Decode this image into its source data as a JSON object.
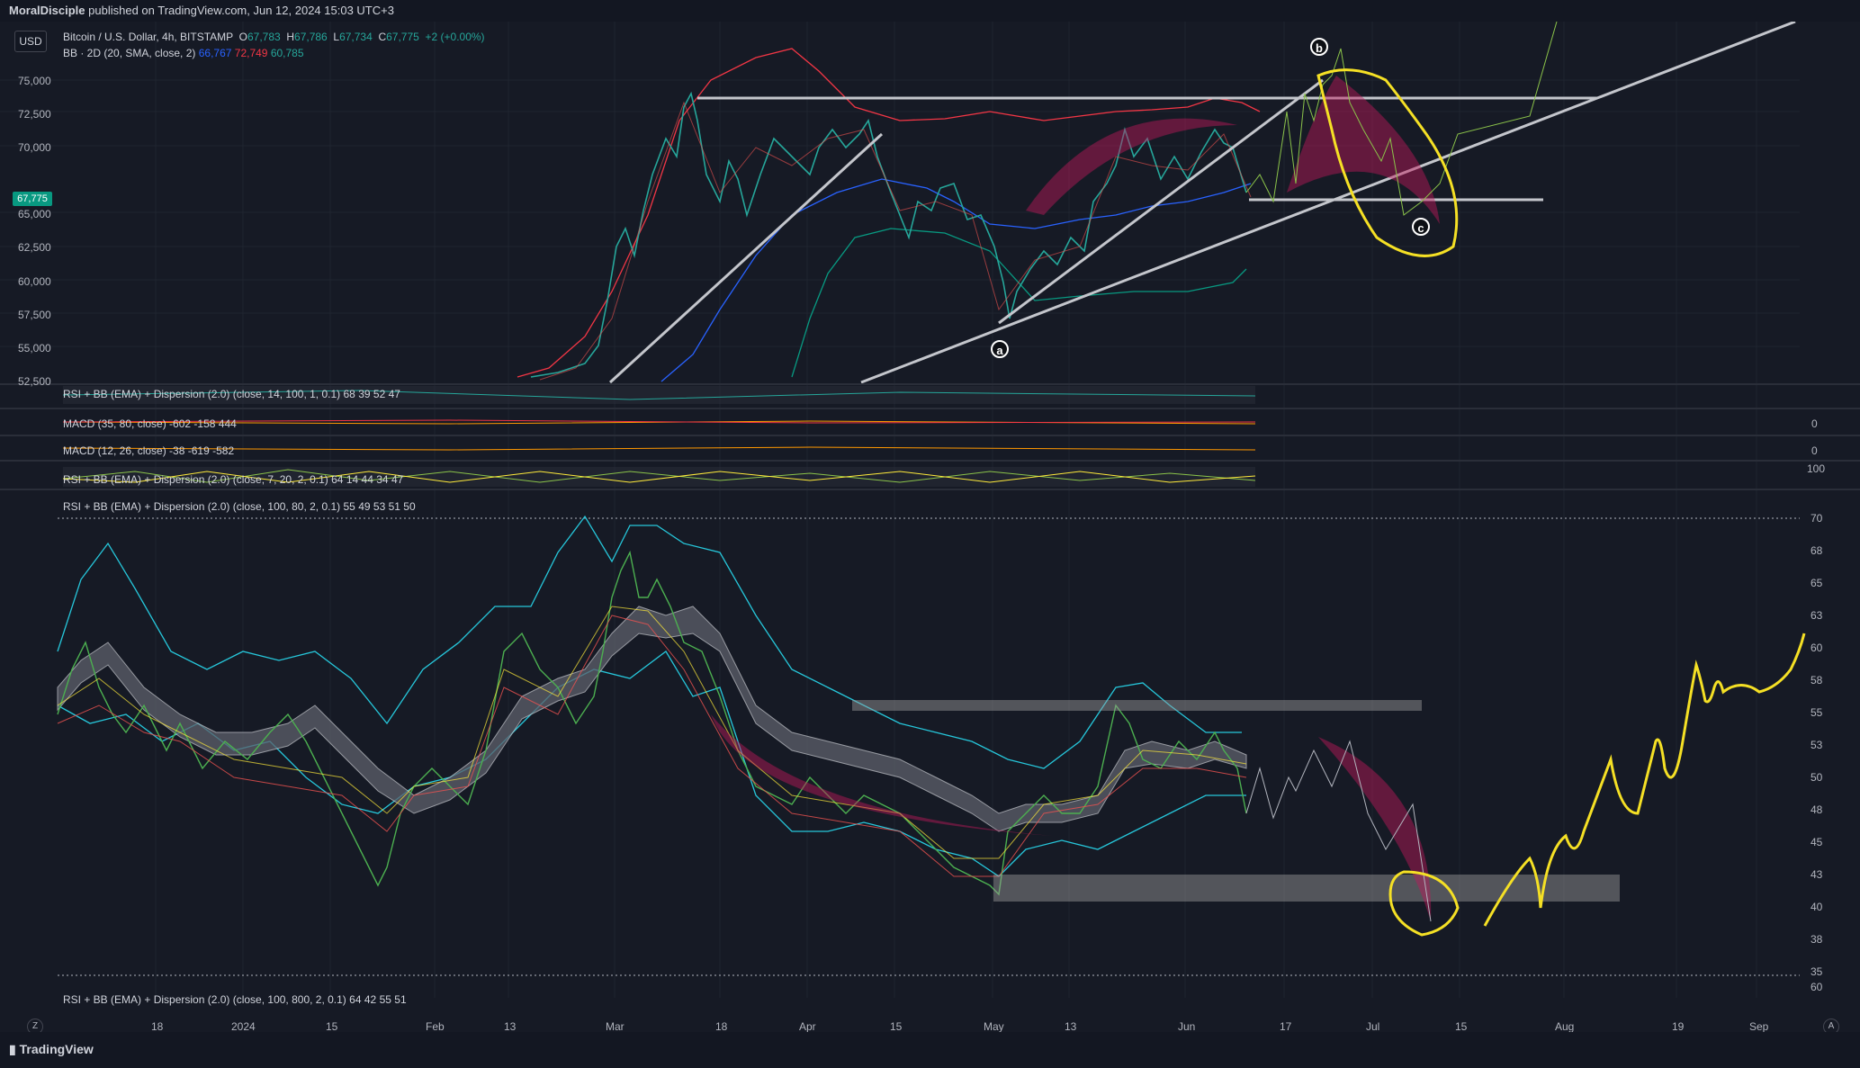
{
  "header": {
    "author": "MoralDisciple",
    "published_text": "published on TradingView.com, Jun 12, 2024 15:03 UTC+3"
  },
  "currency_button": "USD",
  "main_legend": {
    "symbol": "Bitcoin / U.S. Dollar, 4h, BITSTAMP",
    "o_label": "O",
    "o_value": "67,783",
    "h_label": "H",
    "h_value": "67,786",
    "l_label": "L",
    "l_value": "67,734",
    "c_label": "C",
    "c_value": "67,775",
    "change": "+2 (+0.00%)",
    "bb_label": "BB · 2D (20, SMA, close, 2)",
    "bb_basis": "66,767",
    "bb_upper": "72,749",
    "bb_lower": "60,785"
  },
  "current_price_tag": "67,775",
  "price_axis": [
    "75,000",
    "72,500",
    "70,000",
    "65,000",
    "62,500",
    "60,000",
    "57,500",
    "55,000",
    "52,500"
  ],
  "indicators": [
    {
      "label": "RSI + BB (EMA) + Dispersion (2.0) (close, 14, 100, 1, 0.1)",
      "v1": "68",
      "v2": "39",
      "v3": "52",
      "v4": "47"
    },
    {
      "label": "MACD (35, 80, close)",
      "v1": "-602",
      "v2": "-158",
      "v3": "444",
      "zero": "0"
    },
    {
      "label": "MACD (12, 26, close)",
      "v1": "-38",
      "v2": "-619",
      "v3": "-582",
      "zero": "0"
    },
    {
      "label": "RSI + BB (EMA) + Dispersion (2.0) (close, 7, 20, 2, 0.1)",
      "v1": "64",
      "v2": "14",
      "v3": "44",
      "v4": "34",
      "v5": "47",
      "scale": "100"
    },
    {
      "label": "RSI + BB (EMA) + Dispersion (2.0) (close, 100, 80, 2, 0.1)",
      "v1": "55",
      "v2": "49",
      "v3": "53",
      "v4": "51",
      "v5": "50"
    },
    {
      "label": "RSI + BB (EMA) + Dispersion (2.0) (close, 100, 800, 2, 0.1)",
      "v1": "64",
      "v2": "42",
      "v3": "55",
      "v4": "51",
      "scale": "60"
    }
  ],
  "rsi_axis": [
    "70",
    "68",
    "65",
    "63",
    "60",
    "58",
    "55",
    "53",
    "50",
    "48",
    "45",
    "43",
    "40",
    "38",
    "35"
  ],
  "time_axis": [
    "18",
    "2024",
    "15",
    "Feb",
    "13",
    "Mar",
    "18",
    "Apr",
    "15",
    "May",
    "13",
    "Jun",
    "17",
    "Jul",
    "15",
    "Aug",
    "19",
    "Sep"
  ],
  "wave_labels": {
    "a": "a",
    "b": "b",
    "c": "c"
  },
  "footer": {
    "logo_text": "TradingView"
  },
  "corner_left": "Z",
  "corner_right": "A",
  "colors": {
    "background": "#161a25",
    "up": "#26a69a",
    "down": "#ef5350",
    "bb_upper": "#f23645",
    "bb_basis": "#2962ff",
    "bb_lower": "#089981",
    "yellow": "#f5e025",
    "trendline": "#b2b5be"
  }
}
